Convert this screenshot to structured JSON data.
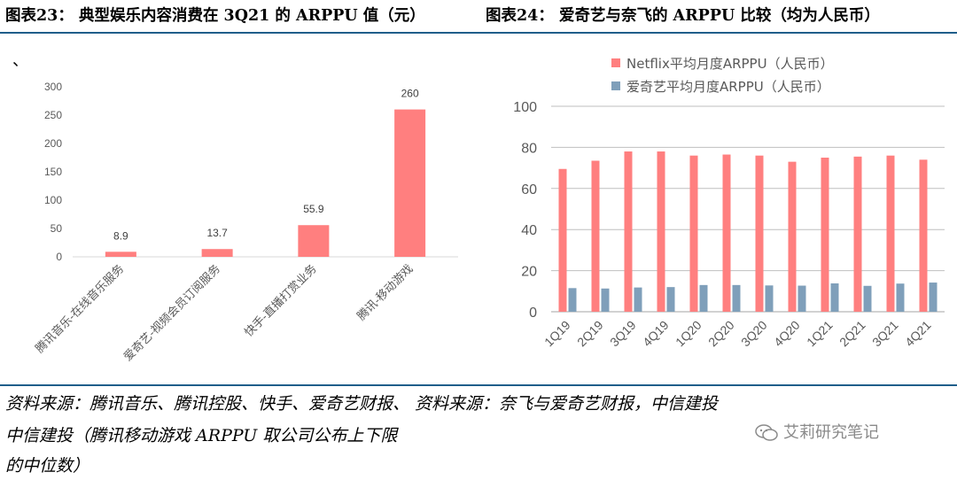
{
  "figures": {
    "left_title": "图表23： 典型娱乐内容消费在 3Q21 的 ARPPU 值（元）",
    "right_title": "图表24： 爱奇艺与奈飞的 ARPPU 比较（均为人民币）",
    "left_mark": "、"
  },
  "footer": {
    "left_source_lines": [
      "资料来源：腾讯音乐、腾讯控股、快手、爱奇艺财报、",
      "中信建投（腾讯移动游戏 ARPPU 取公司公布上下限",
      "的中位数）"
    ],
    "right_source": "资料来源：奈飞与爱奇艺财报，中信建投",
    "watermark": "艾莉研究笔记"
  },
  "colors": {
    "pink": "#ff7f7f",
    "blue": "#7f9fba",
    "rule": "#1f5e8a",
    "axis_text": "#595959",
    "grid": "#bfbfbf"
  },
  "chart_data": [
    {
      "type": "bar",
      "categories": [
        "腾讯音乐-在线音乐服务",
        "爱奇艺-视频会员订阅服务",
        "快手-直播打赏业务",
        "腾讯-移动游戏"
      ],
      "values": [
        8.9,
        13.7,
        55.9,
        260
      ],
      "data_labels": [
        "8.9",
        "13.7",
        "55.9",
        "260"
      ],
      "yticks": [
        0,
        50,
        100,
        150,
        200,
        250,
        300
      ],
      "ylim": [
        0,
        300
      ],
      "grid": false,
      "legend": "none"
    },
    {
      "type": "bar",
      "categories": [
        "1Q19",
        "2Q19",
        "3Q19",
        "4Q19",
        "1Q20",
        "2Q20",
        "3Q20",
        "4Q20",
        "1Q21",
        "2Q21",
        "3Q21",
        "4Q21"
      ],
      "series": [
        {
          "name": "Netflix平均月度ARPPU（人民币）",
          "values": [
            69.5,
            73.5,
            78,
            78,
            76,
            76.5,
            76,
            73,
            75,
            75.5,
            76,
            74
          ]
        },
        {
          "name": "爱奇艺平均月度ARPPU（人民币）",
          "values": [
            11.5,
            11.3,
            11.8,
            12,
            13,
            13,
            12.8,
            12.7,
            13.8,
            12.6,
            13.7,
            14.2
          ]
        }
      ],
      "yticks": [
        0,
        20,
        40,
        60,
        80,
        100
      ],
      "ylim": [
        0,
        100
      ],
      "grid": true,
      "legend": "top-left"
    }
  ]
}
